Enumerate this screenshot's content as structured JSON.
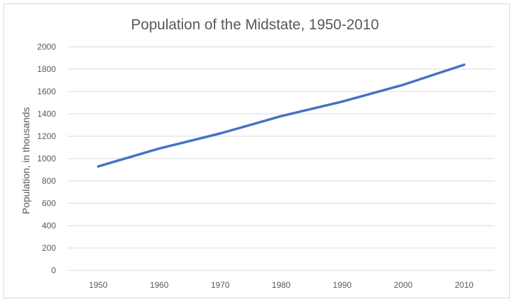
{
  "chart_data": {
    "type": "line",
    "title": "Population of the Midstate, 1950-2010",
    "xlabel": "",
    "ylabel": "Population, in thousands",
    "categories": [
      "1950",
      "1960",
      "1970",
      "1980",
      "1990",
      "2000",
      "2010"
    ],
    "series": [
      {
        "values": [
          930,
          1090,
          1225,
          1380,
          1510,
          1660,
          1840
        ],
        "color": "#4472c4"
      }
    ],
    "ylim": [
      0,
      2000
    ],
    "yticks": [
      0,
      200,
      400,
      600,
      800,
      1000,
      1200,
      1400,
      1600,
      1800,
      2000
    ],
    "grid": true,
    "legend": "none"
  }
}
